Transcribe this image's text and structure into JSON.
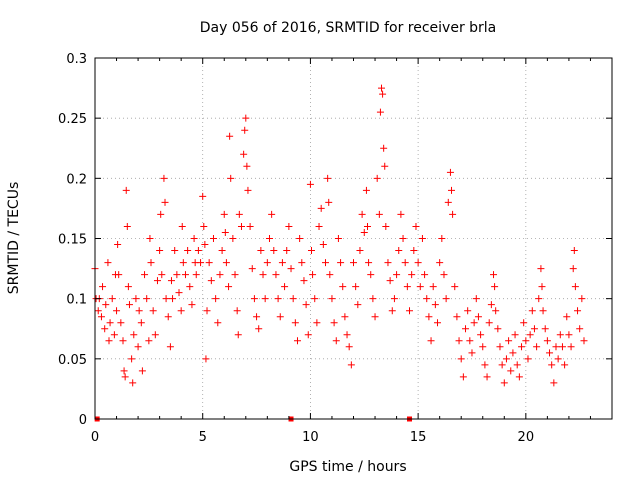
{
  "chart_data": {
    "type": "scatter",
    "title": "Day 056 of 2016, SRMTID for receiver brla",
    "xlabel": "GPS time / hours",
    "ylabel": "SRMTID / TECUs",
    "xlim": [
      0,
      24
    ],
    "ylim": [
      0,
      0.3
    ],
    "xticks": [
      0,
      5,
      10,
      15,
      20
    ],
    "xtick_labels": [
      "0",
      "5",
      "10",
      "15",
      "20"
    ],
    "yticks": [
      0,
      0.05,
      0.1,
      0.15,
      0.2,
      0.25,
      0.3
    ],
    "ytick_labels": [
      "0",
      "0.05",
      "0.1",
      "0.15",
      "0.2",
      "0.25",
      "0.3"
    ],
    "grid": true,
    "marker": "+",
    "color": "#ff0000",
    "series": [
      {
        "name": "SRMTID",
        "points": [
          [
            0.0,
            0.125
          ],
          [
            0.05,
            0.1
          ],
          [
            0.15,
            0.09
          ],
          [
            0.2,
            0.1
          ],
          [
            0.3,
            0.085
          ],
          [
            0.35,
            0.11
          ],
          [
            0.45,
            0.075
          ],
          [
            0.5,
            0.095
          ],
          [
            0.6,
            0.13
          ],
          [
            0.65,
            0.065
          ],
          [
            0.7,
            0.08
          ],
          [
            0.8,
            0.1
          ],
          [
            0.9,
            0.07
          ],
          [
            0.95,
            0.12
          ],
          [
            1.0,
            0.09
          ],
          [
            1.05,
            0.145
          ],
          [
            1.1,
            0.12
          ],
          [
            1.2,
            0.08
          ],
          [
            1.3,
            0.065
          ],
          [
            1.35,
            0.04
          ],
          [
            1.4,
            0.035
          ],
          [
            1.45,
            0.19
          ],
          [
            1.5,
            0.16
          ],
          [
            1.55,
            0.11
          ],
          [
            1.6,
            0.095
          ],
          [
            1.7,
            0.05
          ],
          [
            1.75,
            0.03
          ],
          [
            1.8,
            0.07
          ],
          [
            1.9,
            0.1
          ],
          [
            2.0,
            0.06
          ],
          [
            2.05,
            0.09
          ],
          [
            2.15,
            0.08
          ],
          [
            2.2,
            0.04
          ],
          [
            2.3,
            0.12
          ],
          [
            2.4,
            0.1
          ],
          [
            2.5,
            0.065
          ],
          [
            2.55,
            0.15
          ],
          [
            2.6,
            0.13
          ],
          [
            2.7,
            0.09
          ],
          [
            2.8,
            0.07
          ],
          [
            2.9,
            0.115
          ],
          [
            3.0,
            0.14
          ],
          [
            3.05,
            0.17
          ],
          [
            3.1,
            0.12
          ],
          [
            3.2,
            0.2
          ],
          [
            3.25,
            0.18
          ],
          [
            3.3,
            0.1
          ],
          [
            3.4,
            0.085
          ],
          [
            3.5,
            0.06
          ],
          [
            3.55,
            0.115
          ],
          [
            3.6,
            0.1
          ],
          [
            3.7,
            0.14
          ],
          [
            3.8,
            0.12
          ],
          [
            3.9,
            0.105
          ],
          [
            4.0,
            0.09
          ],
          [
            4.05,
            0.16
          ],
          [
            4.1,
            0.13
          ],
          [
            4.2,
            0.12
          ],
          [
            4.3,
            0.14
          ],
          [
            4.4,
            0.11
          ],
          [
            4.5,
            0.095
          ],
          [
            4.6,
            0.15
          ],
          [
            4.65,
            0.13
          ],
          [
            4.7,
            0.12
          ],
          [
            4.8,
            0.14
          ],
          [
            4.9,
            0.13
          ],
          [
            5.0,
            0.185
          ],
          [
            5.05,
            0.16
          ],
          [
            5.1,
            0.145
          ],
          [
            5.15,
            0.05
          ],
          [
            5.2,
            0.09
          ],
          [
            5.3,
            0.13
          ],
          [
            5.4,
            0.115
          ],
          [
            5.5,
            0.15
          ],
          [
            5.6,
            0.1
          ],
          [
            5.7,
            0.08
          ],
          [
            5.8,
            0.12
          ],
          [
            5.9,
            0.14
          ],
          [
            6.0,
            0.17
          ],
          [
            6.05,
            0.155
          ],
          [
            6.1,
            0.13
          ],
          [
            6.2,
            0.11
          ],
          [
            6.25,
            0.235
          ],
          [
            6.3,
            0.2
          ],
          [
            6.4,
            0.15
          ],
          [
            6.5,
            0.12
          ],
          [
            6.6,
            0.09
          ],
          [
            6.65,
            0.07
          ],
          [
            6.7,
            0.17
          ],
          [
            6.8,
            0.16
          ],
          [
            6.9,
            0.22
          ],
          [
            6.95,
            0.24
          ],
          [
            7.0,
            0.25
          ],
          [
            7.05,
            0.21
          ],
          [
            7.1,
            0.19
          ],
          [
            7.2,
            0.16
          ],
          [
            7.3,
            0.125
          ],
          [
            7.4,
            0.1
          ],
          [
            7.5,
            0.085
          ],
          [
            7.6,
            0.075
          ],
          [
            7.7,
            0.14
          ],
          [
            7.8,
            0.12
          ],
          [
            7.9,
            0.1
          ],
          [
            8.0,
            0.13
          ],
          [
            8.1,
            0.15
          ],
          [
            8.2,
            0.17
          ],
          [
            8.3,
            0.14
          ],
          [
            8.4,
            0.12
          ],
          [
            8.5,
            0.1
          ],
          [
            8.6,
            0.085
          ],
          [
            8.7,
            0.13
          ],
          [
            8.8,
            0.11
          ],
          [
            8.9,
            0.14
          ],
          [
            9.0,
            0.16
          ],
          [
            9.1,
            0.125
          ],
          [
            9.2,
            0.1
          ],
          [
            9.3,
            0.08
          ],
          [
            9.4,
            0.065
          ],
          [
            9.5,
            0.15
          ],
          [
            9.6,
            0.13
          ],
          [
            9.7,
            0.115
          ],
          [
            9.8,
            0.095
          ],
          [
            9.9,
            0.07
          ],
          [
            10.0,
            0.195
          ],
          [
            10.05,
            0.14
          ],
          [
            10.1,
            0.12
          ],
          [
            10.2,
            0.1
          ],
          [
            10.3,
            0.08
          ],
          [
            10.4,
            0.16
          ],
          [
            10.5,
            0.175
          ],
          [
            10.6,
            0.145
          ],
          [
            10.7,
            0.13
          ],
          [
            10.8,
            0.2
          ],
          [
            10.85,
            0.18
          ],
          [
            10.9,
            0.12
          ],
          [
            11.0,
            0.1
          ],
          [
            11.1,
            0.08
          ],
          [
            11.2,
            0.065
          ],
          [
            11.3,
            0.15
          ],
          [
            11.4,
            0.13
          ],
          [
            11.5,
            0.11
          ],
          [
            11.6,
            0.085
          ],
          [
            11.7,
            0.07
          ],
          [
            11.8,
            0.06
          ],
          [
            11.9,
            0.045
          ],
          [
            12.0,
            0.13
          ],
          [
            12.1,
            0.11
          ],
          [
            12.2,
            0.095
          ],
          [
            12.3,
            0.14
          ],
          [
            12.4,
            0.17
          ],
          [
            12.5,
            0.155
          ],
          [
            12.6,
            0.19
          ],
          [
            12.65,
            0.16
          ],
          [
            12.7,
            0.13
          ],
          [
            12.8,
            0.12
          ],
          [
            12.9,
            0.1
          ],
          [
            13.0,
            0.085
          ],
          [
            13.1,
            0.2
          ],
          [
            13.2,
            0.17
          ],
          [
            13.25,
            0.255
          ],
          [
            13.3,
            0.275
          ],
          [
            13.35,
            0.27
          ],
          [
            13.4,
            0.225
          ],
          [
            13.45,
            0.21
          ],
          [
            13.5,
            0.16
          ],
          [
            13.6,
            0.13
          ],
          [
            13.7,
            0.115
          ],
          [
            13.8,
            0.09
          ],
          [
            13.9,
            0.1
          ],
          [
            14.0,
            0.12
          ],
          [
            14.1,
            0.14
          ],
          [
            14.2,
            0.17
          ],
          [
            14.3,
            0.15
          ],
          [
            14.4,
            0.13
          ],
          [
            14.5,
            0.11
          ],
          [
            14.6,
            0.09
          ],
          [
            14.7,
            0.12
          ],
          [
            14.8,
            0.14
          ],
          [
            14.9,
            0.16
          ],
          [
            15.0,
            0.13
          ],
          [
            15.1,
            0.11
          ],
          [
            15.2,
            0.15
          ],
          [
            15.3,
            0.12
          ],
          [
            15.4,
            0.1
          ],
          [
            15.5,
            0.085
          ],
          [
            15.6,
            0.065
          ],
          [
            15.7,
            0.11
          ],
          [
            15.8,
            0.095
          ],
          [
            15.9,
            0.08
          ],
          [
            16.0,
            0.13
          ],
          [
            16.1,
            0.15
          ],
          [
            16.2,
            0.12
          ],
          [
            16.3,
            0.1
          ],
          [
            16.4,
            0.18
          ],
          [
            16.5,
            0.205
          ],
          [
            16.55,
            0.19
          ],
          [
            16.6,
            0.17
          ],
          [
            16.7,
            0.11
          ],
          [
            16.8,
            0.085
          ],
          [
            16.9,
            0.065
          ],
          [
            17.0,
            0.05
          ],
          [
            17.1,
            0.035
          ],
          [
            17.2,
            0.075
          ],
          [
            17.3,
            0.09
          ],
          [
            17.4,
            0.065
          ],
          [
            17.5,
            0.055
          ],
          [
            17.6,
            0.08
          ],
          [
            17.7,
            0.1
          ],
          [
            17.8,
            0.085
          ],
          [
            17.9,
            0.07
          ],
          [
            18.0,
            0.06
          ],
          [
            18.1,
            0.045
          ],
          [
            18.2,
            0.035
          ],
          [
            18.3,
            0.08
          ],
          [
            18.4,
            0.095
          ],
          [
            18.5,
            0.12
          ],
          [
            18.55,
            0.11
          ],
          [
            18.6,
            0.09
          ],
          [
            18.7,
            0.075
          ],
          [
            18.8,
            0.06
          ],
          [
            18.9,
            0.045
          ],
          [
            19.0,
            0.03
          ],
          [
            19.1,
            0.05
          ],
          [
            19.2,
            0.065
          ],
          [
            19.3,
            0.04
          ],
          [
            19.4,
            0.055
          ],
          [
            19.5,
            0.07
          ],
          [
            19.6,
            0.045
          ],
          [
            19.7,
            0.035
          ],
          [
            19.8,
            0.06
          ],
          [
            19.9,
            0.08
          ],
          [
            20.0,
            0.065
          ],
          [
            20.1,
            0.05
          ],
          [
            20.2,
            0.07
          ],
          [
            20.3,
            0.09
          ],
          [
            20.4,
            0.075
          ],
          [
            20.5,
            0.06
          ],
          [
            20.6,
            0.1
          ],
          [
            20.7,
            0.125
          ],
          [
            20.75,
            0.11
          ],
          [
            20.8,
            0.09
          ],
          [
            20.9,
            0.075
          ],
          [
            21.0,
            0.065
          ],
          [
            21.1,
            0.055
          ],
          [
            21.2,
            0.045
          ],
          [
            21.3,
            0.03
          ],
          [
            21.4,
            0.06
          ],
          [
            21.5,
            0.05
          ],
          [
            21.6,
            0.07
          ],
          [
            21.7,
            0.06
          ],
          [
            21.8,
            0.045
          ],
          [
            21.9,
            0.085
          ],
          [
            22.0,
            0.07
          ],
          [
            22.1,
            0.06
          ],
          [
            22.2,
            0.125
          ],
          [
            22.25,
            0.14
          ],
          [
            22.3,
            0.11
          ],
          [
            22.4,
            0.09
          ],
          [
            22.5,
            0.075
          ],
          [
            22.6,
            0.1
          ],
          [
            22.7,
            0.065
          ]
        ]
      }
    ],
    "zero_markers_x": [
      0.1,
      9.1,
      14.6
    ]
  }
}
